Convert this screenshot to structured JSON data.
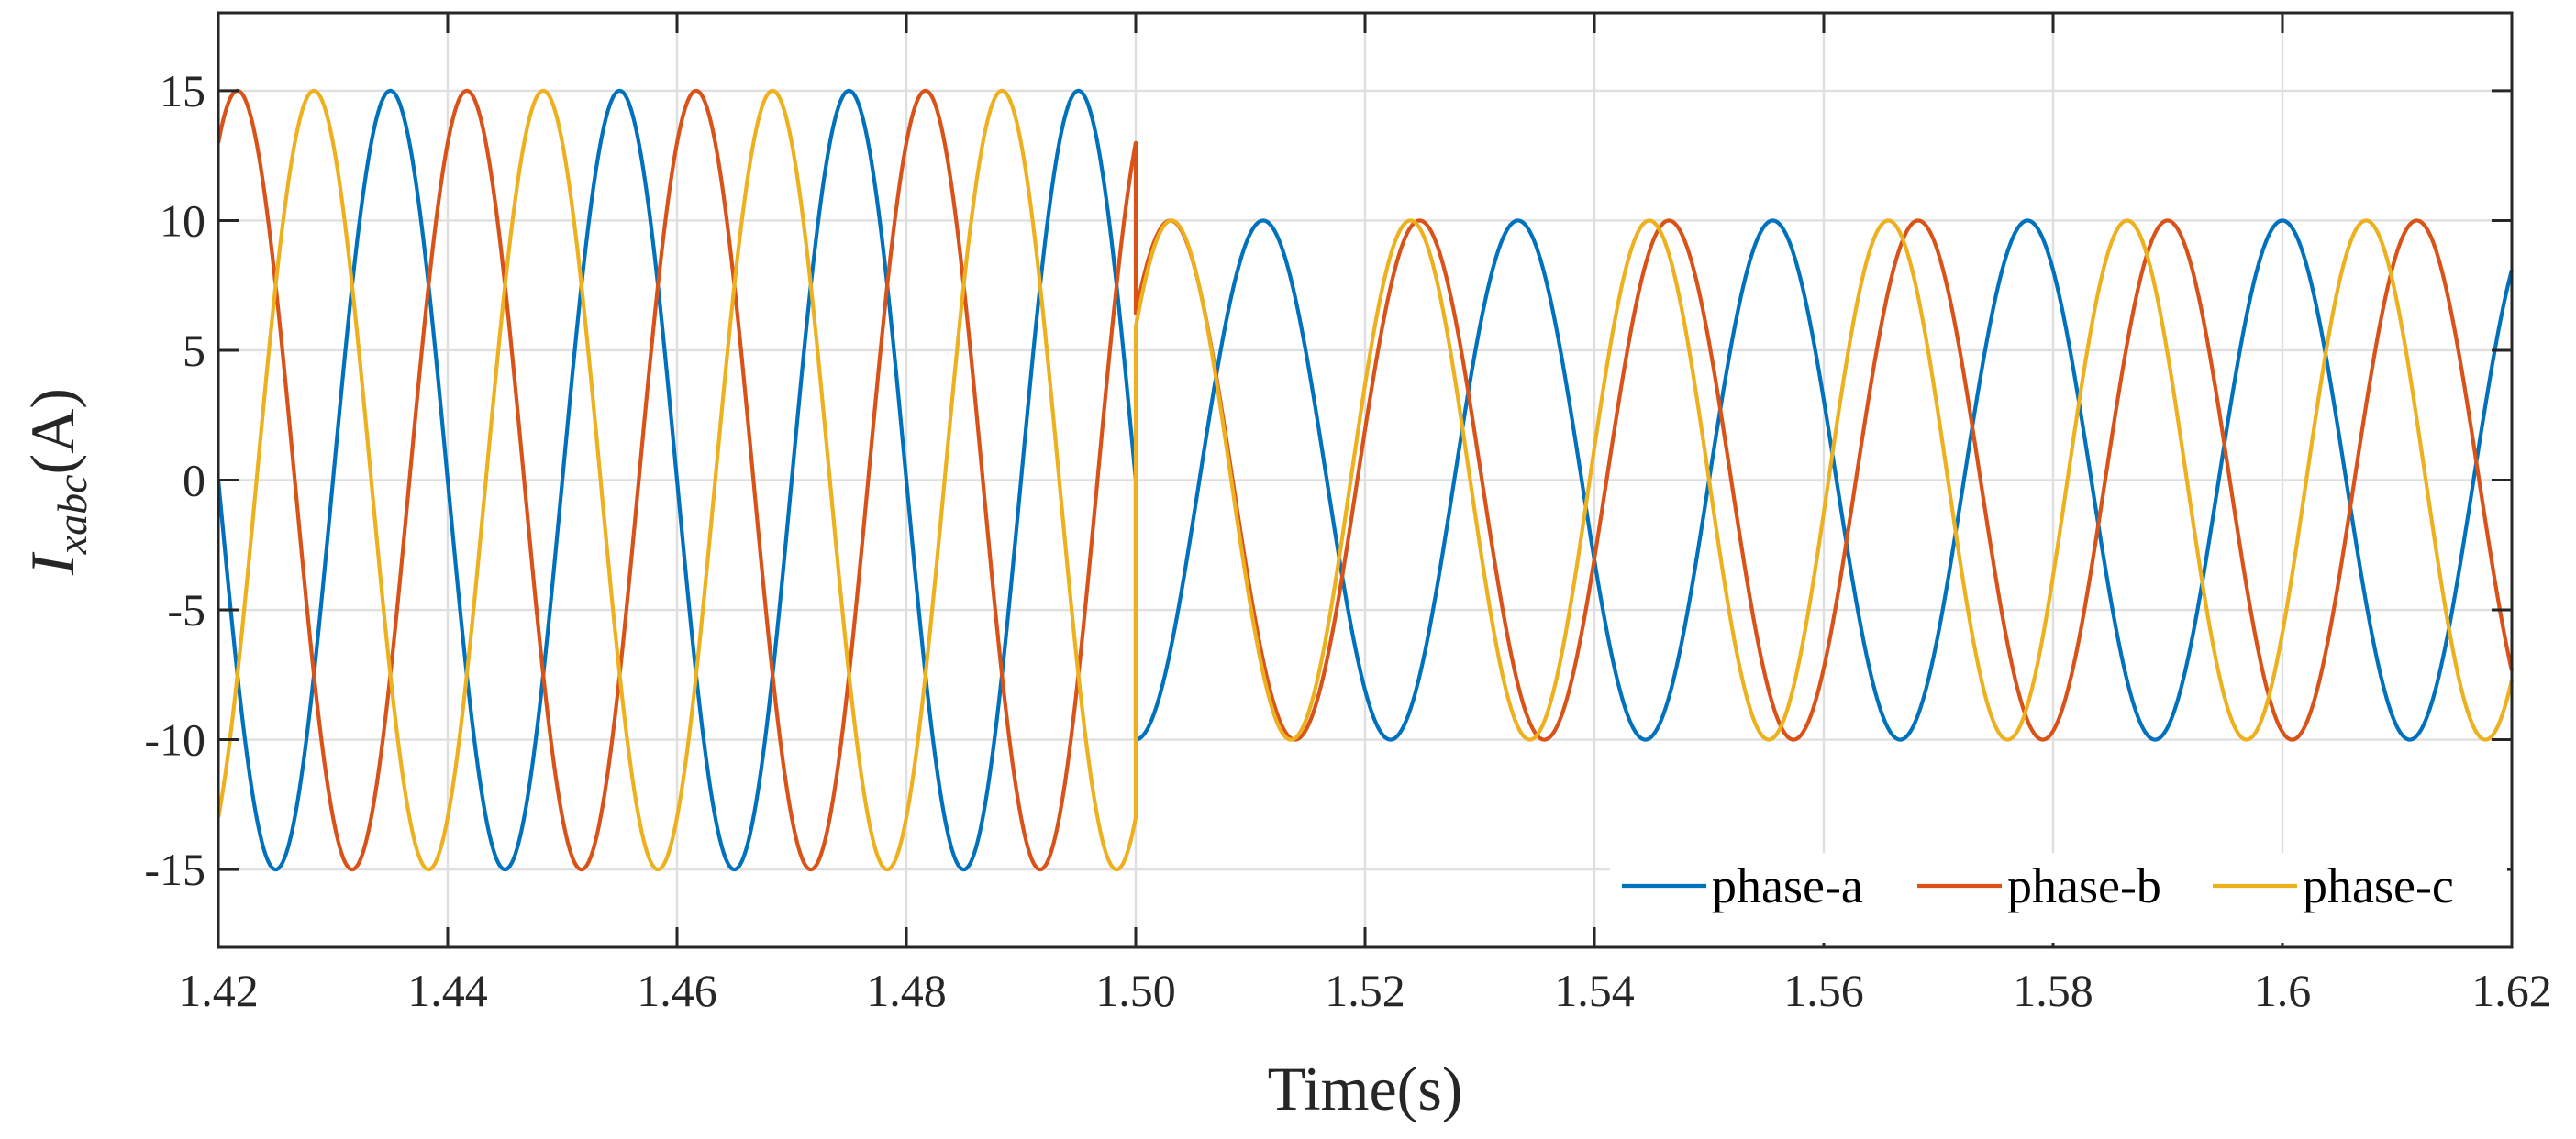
{
  "chart_data": {
    "type": "line",
    "title": "",
    "xlabel": "Time(s)",
    "ylabel_main": "I",
    "ylabel_subscript": "xabc",
    "ylabel_unit": "(A)",
    "xlim": [
      1.42,
      1.62
    ],
    "ylim": [
      -18,
      18
    ],
    "xticks": [
      1.42,
      1.44,
      1.46,
      1.48,
      1.5,
      1.52,
      1.54,
      1.56,
      1.58,
      1.6,
      1.62
    ],
    "xtick_labels": [
      "1.42",
      "1.44",
      "1.46",
      "1.48",
      "1.50",
      "1.52",
      "1.54",
      "1.56",
      "1.58",
      "1.6",
      "1.62"
    ],
    "yticks": [
      15,
      10,
      5,
      0,
      -5,
      -10,
      -15
    ],
    "ytick_labels": [
      "15",
      "10",
      "5",
      "0",
      "-5",
      "-10",
      "-15"
    ],
    "grid": true,
    "legend_position": "bottom-right",
    "event_time": 1.5,
    "series": [
      {
        "name": "phase-a",
        "color": "#0072BD",
        "segments": [
          {
            "t_start": 1.42,
            "t_end": 1.5,
            "amplitude": 15,
            "frequency_hz": 50,
            "phase_deg": 180
          },
          {
            "t_start": 1.5,
            "t_end": 1.62,
            "amplitude": 10,
            "frequency_hz": 45,
            "phase_deg": 90
          }
        ]
      },
      {
        "name": "phase-b",
        "color": "#D95319",
        "segments": [
          {
            "t_start": 1.42,
            "t_end": 1.5,
            "amplitude": 15,
            "frequency_hz": 50,
            "phase_deg": 60
          },
          {
            "t_start": 1.5,
            "t_end": 1.62,
            "amplitude": 10,
            "frequency_hz": 46,
            "phase_deg": 40
          }
        ]
      },
      {
        "name": "phase-c",
        "color": "#EDB120",
        "segments": [
          {
            "t_start": 1.42,
            "t_end": 1.5,
            "amplitude": 15,
            "frequency_hz": 50,
            "phase_deg": -60
          },
          {
            "t_start": 1.5,
            "t_end": 1.62,
            "amplitude": 10,
            "frequency_hz": 48,
            "phase_deg": 36
          }
        ]
      }
    ]
  }
}
